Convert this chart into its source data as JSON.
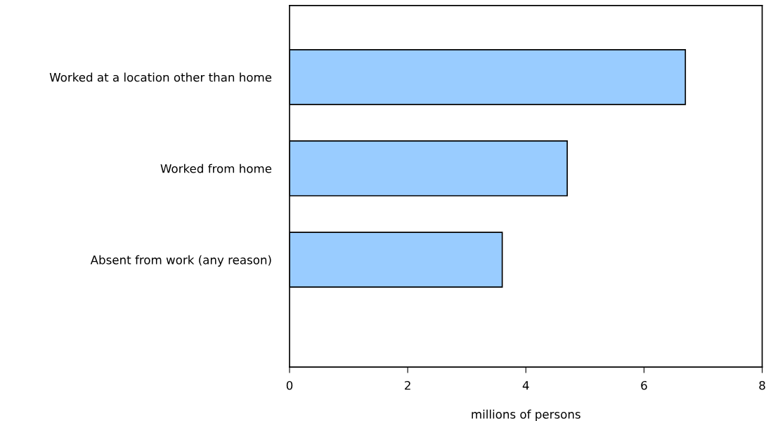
{
  "chart_data": {
    "type": "bar",
    "orientation": "horizontal",
    "xlabel": "millions of persons",
    "categories": [
      "Worked at a location other than home",
      "Worked from home",
      "Absent from work (any reason)"
    ],
    "values": [
      6.7,
      4.7,
      3.6
    ],
    "color": "#99ccff",
    "xlim": [
      0,
      8
    ],
    "xticks": [
      0,
      2,
      4,
      6,
      8
    ],
    "grid": false,
    "legend": false
  }
}
